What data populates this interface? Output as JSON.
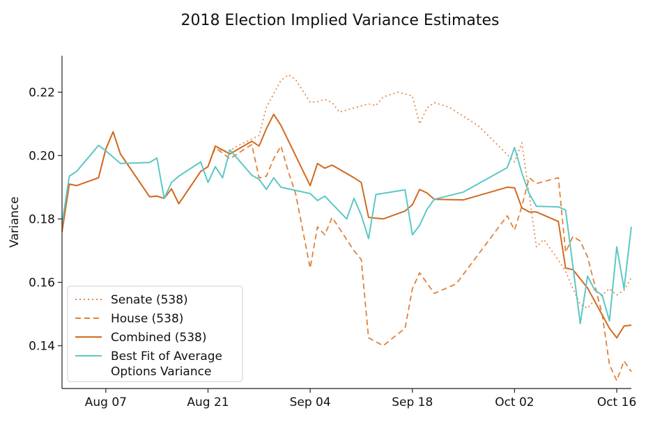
{
  "chart_data": {
    "type": "line",
    "title": "2018 Election Implied Variance Estimates",
    "xlabel": "",
    "ylabel": "Variance",
    "x_range": [
      "2018-08-01",
      "2018-10-18"
    ],
    "ylim": [
      0.1265,
      0.2315
    ],
    "x_ticks": [
      {
        "date": "2018-08-07",
        "label": "Aug 07"
      },
      {
        "date": "2018-08-21",
        "label": "Aug 21"
      },
      {
        "date": "2018-09-04",
        "label": "Sep 04"
      },
      {
        "date": "2018-09-18",
        "label": "Sep 18"
      },
      {
        "date": "2018-10-02",
        "label": "Oct 02"
      },
      {
        "date": "2018-10-16",
        "label": "Oct 16"
      }
    ],
    "y_ticks": [
      {
        "value": 0.14,
        "label": "0.14"
      },
      {
        "value": 0.16,
        "label": "0.16"
      },
      {
        "value": 0.18,
        "label": "0.18"
      },
      {
        "value": 0.2,
        "label": "0.20"
      },
      {
        "value": 0.22,
        "label": "0.22"
      }
    ],
    "grid": false,
    "legend_position": "bottom-left",
    "series": [
      {
        "name": "Senate (538)",
        "color": "#e8864a",
        "style": "dotted",
        "points": [
          [
            "2018-08-01",
            0.176
          ],
          [
            "2018-08-02",
            0.191
          ],
          [
            "2018-08-03",
            0.1905
          ],
          [
            "2018-08-06",
            0.193
          ],
          [
            "2018-08-07",
            0.202
          ],
          [
            "2018-08-08",
            0.2075
          ],
          [
            "2018-08-09",
            0.2005
          ],
          [
            "2018-08-13",
            0.187
          ],
          [
            "2018-08-14",
            0.1872
          ],
          [
            "2018-08-15",
            0.1865
          ],
          [
            "2018-08-16",
            0.1895
          ],
          [
            "2018-08-17",
            0.1848
          ],
          [
            "2018-08-20",
            0.195
          ],
          [
            "2018-08-21",
            0.1965
          ],
          [
            "2018-08-22",
            0.203
          ],
          [
            "2018-08-23",
            0.2015
          ],
          [
            "2018-08-24",
            0.2015
          ],
          [
            "2018-08-25",
            0.203
          ],
          [
            "2018-08-27",
            0.2052
          ],
          [
            "2018-08-28",
            0.2063
          ],
          [
            "2018-08-29",
            0.2152
          ],
          [
            "2018-08-30",
            0.2195
          ],
          [
            "2018-08-31",
            0.2237
          ],
          [
            "2018-09-01",
            0.2255
          ],
          [
            "2018-09-02",
            0.224
          ],
          [
            "2018-09-04",
            0.2168
          ],
          [
            "2018-09-05",
            0.217
          ],
          [
            "2018-09-06",
            0.2177
          ],
          [
            "2018-09-07",
            0.2167
          ],
          [
            "2018-09-08",
            0.2137
          ],
          [
            "2018-09-10",
            0.215
          ],
          [
            "2018-09-12",
            0.2163
          ],
          [
            "2018-09-13",
            0.2157
          ],
          [
            "2018-09-14",
            0.2185
          ],
          [
            "2018-09-16",
            0.22
          ],
          [
            "2018-09-18",
            0.2188
          ],
          [
            "2018-09-19",
            0.21
          ],
          [
            "2018-09-20",
            0.215
          ],
          [
            "2018-09-21",
            0.2167
          ],
          [
            "2018-09-23",
            0.2153
          ],
          [
            "2018-09-27",
            0.2095
          ],
          [
            "2018-10-02",
            0.198
          ],
          [
            "2018-10-03",
            0.204
          ],
          [
            "2018-10-05",
            0.1712
          ],
          [
            "2018-10-06",
            0.1735
          ],
          [
            "2018-10-08",
            0.167
          ],
          [
            "2018-10-09",
            0.1635
          ],
          [
            "2018-10-10",
            0.158
          ],
          [
            "2018-10-11",
            0.153
          ],
          [
            "2018-10-12",
            0.1518
          ],
          [
            "2018-10-13",
            0.1545
          ],
          [
            "2018-10-14",
            0.156
          ],
          [
            "2018-10-15",
            0.158
          ],
          [
            "2018-10-16",
            0.156
          ],
          [
            "2018-10-17",
            0.1575
          ],
          [
            "2018-10-18",
            0.1615
          ]
        ]
      },
      {
        "name": "House (538)",
        "color": "#e0803a",
        "style": "dashed",
        "points": [
          [
            "2018-08-01",
            0.176
          ],
          [
            "2018-08-02",
            0.191
          ],
          [
            "2018-08-03",
            0.1905
          ],
          [
            "2018-08-06",
            0.193
          ],
          [
            "2018-08-07",
            0.202
          ],
          [
            "2018-08-08",
            0.2075
          ],
          [
            "2018-08-09",
            0.2005
          ],
          [
            "2018-08-13",
            0.187
          ],
          [
            "2018-08-14",
            0.1872
          ],
          [
            "2018-08-15",
            0.1865
          ],
          [
            "2018-08-16",
            0.1895
          ],
          [
            "2018-08-17",
            0.1848
          ],
          [
            "2018-08-20",
            0.195
          ],
          [
            "2018-08-21",
            0.1965
          ],
          [
            "2018-08-22",
            0.2025
          ],
          [
            "2018-08-24",
            0.199
          ],
          [
            "2018-08-25",
            0.2005
          ],
          [
            "2018-08-27",
            0.2035
          ],
          [
            "2018-08-28",
            0.193
          ],
          [
            "2018-08-29",
            0.1935
          ],
          [
            "2018-08-30",
            0.199
          ],
          [
            "2018-08-31",
            0.203
          ],
          [
            "2018-09-01",
            0.195
          ],
          [
            "2018-09-02",
            0.188
          ],
          [
            "2018-09-04",
            0.1645
          ],
          [
            "2018-09-05",
            0.1775
          ],
          [
            "2018-09-06",
            0.175
          ],
          [
            "2018-09-07",
            0.1805
          ],
          [
            "2018-09-10",
            0.17
          ],
          [
            "2018-09-11",
            0.1672
          ],
          [
            "2018-09-12",
            0.1425
          ],
          [
            "2018-09-14",
            0.14
          ],
          [
            "2018-09-17",
            0.1455
          ],
          [
            "2018-09-18",
            0.158
          ],
          [
            "2018-09-19",
            0.163
          ],
          [
            "2018-09-21",
            0.1565
          ],
          [
            "2018-09-24",
            0.1595
          ],
          [
            "2018-10-01",
            0.181
          ],
          [
            "2018-10-02",
            0.1765
          ],
          [
            "2018-10-03",
            0.184
          ],
          [
            "2018-10-04",
            0.193
          ],
          [
            "2018-10-05",
            0.1912
          ],
          [
            "2018-10-08",
            0.193
          ],
          [
            "2018-10-09",
            0.1695
          ],
          [
            "2018-10-10",
            0.1745
          ],
          [
            "2018-10-11",
            0.173
          ],
          [
            "2018-10-12",
            0.168
          ],
          [
            "2018-10-14",
            0.15
          ],
          [
            "2018-10-15",
            0.134
          ],
          [
            "2018-10-16",
            0.129
          ],
          [
            "2018-10-17",
            0.1352
          ],
          [
            "2018-10-18",
            0.1318
          ]
        ]
      },
      {
        "name": "Combined (538)",
        "color": "#d2691e",
        "style": "solid",
        "points": [
          [
            "2018-08-01",
            0.176
          ],
          [
            "2018-08-02",
            0.191
          ],
          [
            "2018-08-03",
            0.1905
          ],
          [
            "2018-08-06",
            0.193
          ],
          [
            "2018-08-07",
            0.202
          ],
          [
            "2018-08-08",
            0.2075
          ],
          [
            "2018-08-09",
            0.2005
          ],
          [
            "2018-08-13",
            0.187
          ],
          [
            "2018-08-14",
            0.1872
          ],
          [
            "2018-08-15",
            0.1865
          ],
          [
            "2018-08-16",
            0.1895
          ],
          [
            "2018-08-17",
            0.1848
          ],
          [
            "2018-08-20",
            0.195
          ],
          [
            "2018-08-21",
            0.1965
          ],
          [
            "2018-08-22",
            0.203
          ],
          [
            "2018-08-24",
            0.2005
          ],
          [
            "2018-08-27",
            0.2045
          ],
          [
            "2018-08-28",
            0.203
          ],
          [
            "2018-08-29",
            0.2085
          ],
          [
            "2018-08-30",
            0.213
          ],
          [
            "2018-08-31",
            0.2095
          ],
          [
            "2018-09-04",
            0.1905
          ],
          [
            "2018-09-05",
            0.1975
          ],
          [
            "2018-09-06",
            0.196
          ],
          [
            "2018-09-07",
            0.197
          ],
          [
            "2018-09-10",
            0.193
          ],
          [
            "2018-09-11",
            0.1915
          ],
          [
            "2018-09-12",
            0.1805
          ],
          [
            "2018-09-14",
            0.18
          ],
          [
            "2018-09-17",
            0.1825
          ],
          [
            "2018-09-18",
            0.1845
          ],
          [
            "2018-09-19",
            0.1893
          ],
          [
            "2018-09-20",
            0.1882
          ],
          [
            "2018-09-21",
            0.1862
          ],
          [
            "2018-09-25",
            0.186
          ],
          [
            "2018-10-01",
            0.19
          ],
          [
            "2018-10-02",
            0.1898
          ],
          [
            "2018-10-03",
            0.1835
          ],
          [
            "2018-10-04",
            0.1822
          ],
          [
            "2018-10-05",
            0.1822
          ],
          [
            "2018-10-08",
            0.1792
          ],
          [
            "2018-10-09",
            0.1645
          ],
          [
            "2018-10-10",
            0.164
          ],
          [
            "2018-10-12",
            0.1582
          ],
          [
            "2018-10-15",
            0.1455
          ],
          [
            "2018-10-16",
            0.1425
          ],
          [
            "2018-10-17",
            0.1462
          ],
          [
            "2018-10-18",
            0.1465
          ]
        ]
      },
      {
        "name": "Best Fit of Average Options Variance",
        "color": "#5bc8c4",
        "style": "solid",
        "points": [
          [
            "2018-08-01",
            0.1785
          ],
          [
            "2018-08-02",
            0.1935
          ],
          [
            "2018-08-03",
            0.195
          ],
          [
            "2018-08-06",
            0.2032
          ],
          [
            "2018-08-07",
            0.2015
          ],
          [
            "2018-08-09",
            0.1975
          ],
          [
            "2018-08-13",
            0.1978
          ],
          [
            "2018-08-14",
            0.1992
          ],
          [
            "2018-08-15",
            0.1865
          ],
          [
            "2018-08-16",
            0.1915
          ],
          [
            "2018-08-17",
            0.1935
          ],
          [
            "2018-08-20",
            0.198
          ],
          [
            "2018-08-21",
            0.1915
          ],
          [
            "2018-08-22",
            0.1965
          ],
          [
            "2018-08-23",
            0.193
          ],
          [
            "2018-08-24",
            0.2018
          ],
          [
            "2018-08-27",
            0.1938
          ],
          [
            "2018-08-28",
            0.1925
          ],
          [
            "2018-08-29",
            0.1893
          ],
          [
            "2018-08-30",
            0.193
          ],
          [
            "2018-08-31",
            0.19
          ],
          [
            "2018-09-04",
            0.188
          ],
          [
            "2018-09-05",
            0.1858
          ],
          [
            "2018-09-06",
            0.1872
          ],
          [
            "2018-09-09",
            0.18
          ],
          [
            "2018-09-10",
            0.1865
          ],
          [
            "2018-09-11",
            0.1812
          ],
          [
            "2018-09-12",
            0.1738
          ],
          [
            "2018-09-13",
            0.1877
          ],
          [
            "2018-09-17",
            0.1892
          ],
          [
            "2018-09-18",
            0.175
          ],
          [
            "2018-09-19",
            0.178
          ],
          [
            "2018-09-20",
            0.183
          ],
          [
            "2018-09-21",
            0.1862
          ],
          [
            "2018-09-25",
            0.1885
          ],
          [
            "2018-10-01",
            0.1962
          ],
          [
            "2018-10-02",
            0.2025
          ],
          [
            "2018-10-03",
            0.1945
          ],
          [
            "2018-10-04",
            0.188
          ],
          [
            "2018-10-05",
            0.184
          ],
          [
            "2018-10-08",
            0.1838
          ],
          [
            "2018-10-09",
            0.1828
          ],
          [
            "2018-10-10",
            0.165
          ],
          [
            "2018-10-11",
            0.147
          ],
          [
            "2018-10-12",
            0.162
          ],
          [
            "2018-10-13",
            0.1575
          ],
          [
            "2018-10-14",
            0.156
          ],
          [
            "2018-10-15",
            0.1478
          ],
          [
            "2018-10-16",
            0.1712
          ],
          [
            "2018-10-17",
            0.158
          ],
          [
            "2018-10-18",
            0.1775
          ]
        ]
      }
    ]
  }
}
